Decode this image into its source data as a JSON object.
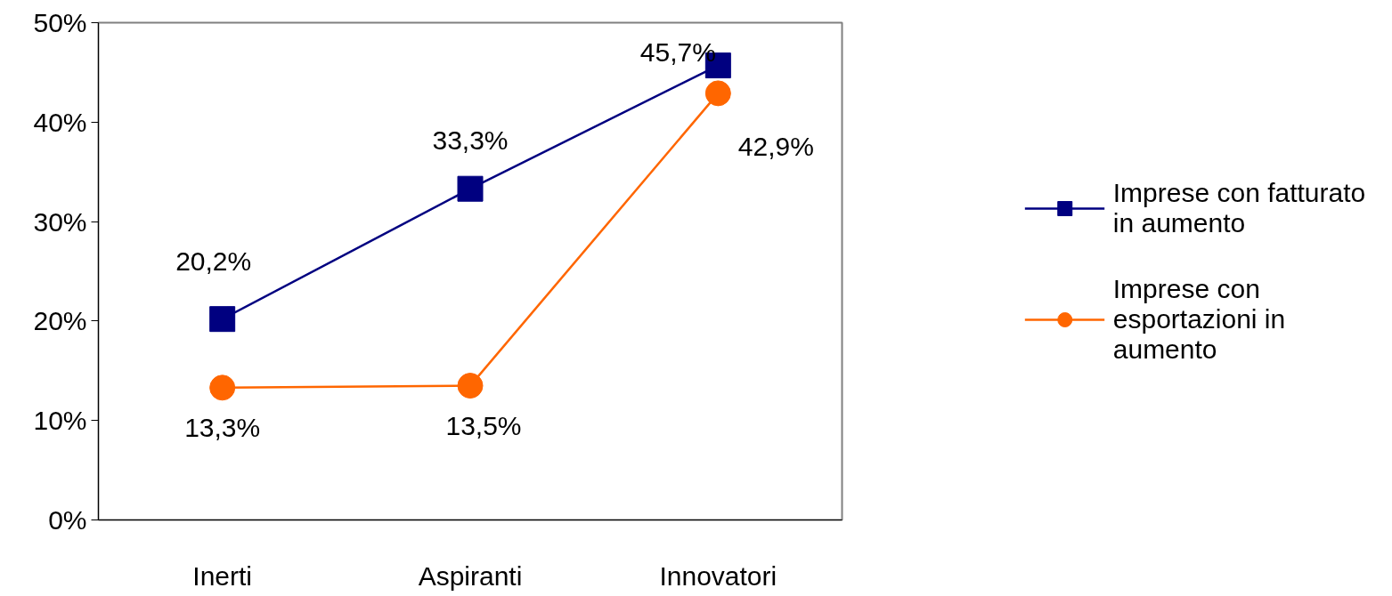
{
  "chart_data": {
    "type": "line",
    "categories": [
      "Inerti",
      "Aspiranti",
      "Innovatori"
    ],
    "series": [
      {
        "name": "Imprese con fatturato in aumento",
        "color": "#000080",
        "marker": "square",
        "values": [
          20.2,
          33.3,
          45.7
        ],
        "value_labels": [
          "20,2%",
          "33,3%",
          "45,7%"
        ]
      },
      {
        "name": "Imprese con esportazioni in aumento",
        "color": "#ff6600",
        "marker": "circle",
        "values": [
          13.3,
          13.5,
          42.9
        ],
        "value_labels": [
          "13,3%",
          "13,5%",
          "42,9%"
        ]
      }
    ],
    "ylim": [
      0,
      50
    ],
    "yticks": [
      {
        "value": 0,
        "label": "0%"
      },
      {
        "value": 10,
        "label": "10%"
      },
      {
        "value": 20,
        "label": "20%"
      },
      {
        "value": 30,
        "label": "30%"
      },
      {
        "value": 40,
        "label": "40%"
      },
      {
        "value": 50,
        "label": "50%"
      }
    ],
    "grid": false,
    "legend": "right"
  }
}
